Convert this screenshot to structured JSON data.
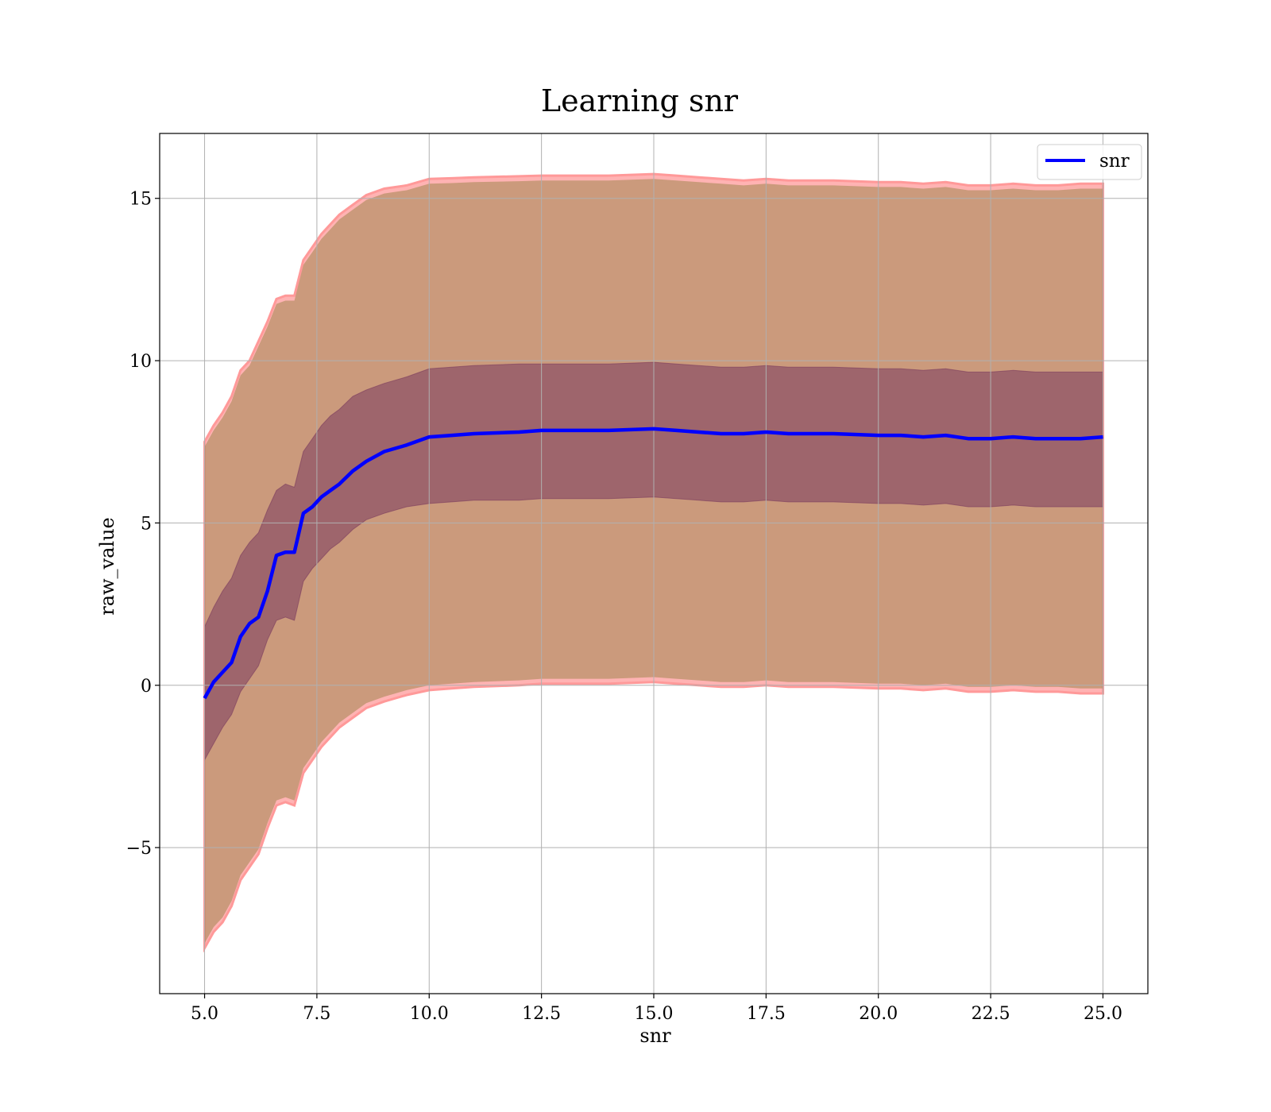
{
  "chart_data": {
    "type": "line",
    "title": "Learning snr",
    "xlabel": "snr",
    "ylabel": "raw_value",
    "xlim": [
      4.0,
      26.0
    ],
    "ylim": [
      -9.5,
      17.0
    ],
    "xticks": [
      5.0,
      7.5,
      10.0,
      12.5,
      15.0,
      17.5,
      20.0,
      22.5,
      25.0
    ],
    "xtick_labels": [
      "5.0",
      "7.5",
      "10.0",
      "12.5",
      "15.0",
      "17.5",
      "20.0",
      "22.5",
      "25.0"
    ],
    "yticks": [
      -5,
      0,
      5,
      10,
      15
    ],
    "ytick_labels": [
      "−5",
      "0",
      "5",
      "10",
      "15"
    ],
    "grid": true,
    "legend_position": "top-right",
    "colors": {
      "line": "#0000ff",
      "outer_band": "#ff9999",
      "outer_band_overlay": "#8b7d3a",
      "inner_band": "#7a3a5e",
      "grid": "#b0b0b0"
    },
    "series": [
      {
        "name": "snr",
        "x": [
          5.0,
          5.2,
          5.4,
          5.6,
          5.8,
          6.0,
          6.2,
          6.4,
          6.6,
          6.8,
          7.0,
          7.2,
          7.4,
          7.6,
          7.8,
          8.0,
          8.3,
          8.6,
          9.0,
          9.5,
          10.0,
          10.5,
          11.0,
          12.0,
          12.5,
          13.0,
          14.0,
          15.0,
          15.5,
          16.0,
          16.5,
          17.0,
          17.5,
          18.0,
          18.5,
          19.0,
          20.0,
          20.5,
          21.0,
          21.5,
          22.0,
          22.5,
          23.0,
          23.5,
          24.0,
          24.5,
          25.0
        ],
        "mean": [
          -0.4,
          0.1,
          0.4,
          0.7,
          1.5,
          1.9,
          2.1,
          2.9,
          4.0,
          4.1,
          4.1,
          5.3,
          5.5,
          5.8,
          6.0,
          6.2,
          6.6,
          6.9,
          7.2,
          7.4,
          7.65,
          7.7,
          7.75,
          7.8,
          7.85,
          7.85,
          7.85,
          7.9,
          7.85,
          7.8,
          7.75,
          7.75,
          7.8,
          7.75,
          7.75,
          7.75,
          7.7,
          7.7,
          7.65,
          7.7,
          7.6,
          7.6,
          7.65,
          7.6,
          7.6,
          7.6,
          7.65
        ],
        "inner_upper": [
          1.8,
          2.4,
          2.9,
          3.3,
          4.0,
          4.4,
          4.7,
          5.4,
          6.0,
          6.2,
          6.1,
          7.2,
          7.6,
          8.0,
          8.3,
          8.5,
          8.9,
          9.1,
          9.3,
          9.5,
          9.75,
          9.8,
          9.85,
          9.9,
          9.9,
          9.9,
          9.9,
          9.95,
          9.9,
          9.85,
          9.8,
          9.8,
          9.85,
          9.8,
          9.8,
          9.8,
          9.75,
          9.75,
          9.7,
          9.75,
          9.65,
          9.65,
          9.7,
          9.65,
          9.65,
          9.65,
          9.65
        ],
        "inner_lower": [
          -2.3,
          -1.8,
          -1.3,
          -0.9,
          -0.2,
          0.2,
          0.6,
          1.4,
          2.0,
          2.1,
          2.0,
          3.2,
          3.6,
          3.9,
          4.2,
          4.4,
          4.8,
          5.1,
          5.3,
          5.5,
          5.6,
          5.65,
          5.7,
          5.7,
          5.75,
          5.75,
          5.75,
          5.8,
          5.75,
          5.7,
          5.65,
          5.65,
          5.7,
          5.65,
          5.65,
          5.65,
          5.6,
          5.6,
          5.55,
          5.6,
          5.5,
          5.5,
          5.55,
          5.5,
          5.5,
          5.5,
          5.5
        ],
        "outer_upper": [
          7.5,
          8.0,
          8.4,
          8.9,
          9.7,
          10.0,
          10.6,
          11.2,
          11.9,
          12.0,
          12.0,
          13.1,
          13.5,
          13.9,
          14.2,
          14.5,
          14.8,
          15.1,
          15.3,
          15.4,
          15.6,
          15.62,
          15.65,
          15.68,
          15.7,
          15.7,
          15.7,
          15.75,
          15.7,
          15.65,
          15.6,
          15.55,
          15.6,
          15.55,
          15.55,
          15.55,
          15.5,
          15.5,
          15.45,
          15.5,
          15.4,
          15.4,
          15.45,
          15.4,
          15.4,
          15.45,
          15.45
        ],
        "outer_lower": [
          -8.1,
          -7.6,
          -7.3,
          -6.8,
          -6.0,
          -5.6,
          -5.2,
          -4.4,
          -3.7,
          -3.6,
          -3.7,
          -2.7,
          -2.3,
          -1.9,
          -1.6,
          -1.3,
          -1.0,
          -0.7,
          -0.5,
          -0.3,
          -0.15,
          -0.1,
          -0.05,
          0.0,
          0.05,
          0.05,
          0.05,
          0.1,
          0.05,
          0.0,
          -0.05,
          -0.05,
          0.0,
          -0.05,
          -0.05,
          -0.05,
          -0.1,
          -0.1,
          -0.15,
          -0.1,
          -0.2,
          -0.2,
          -0.15,
          -0.2,
          -0.2,
          -0.25,
          -0.25
        ]
      }
    ]
  }
}
